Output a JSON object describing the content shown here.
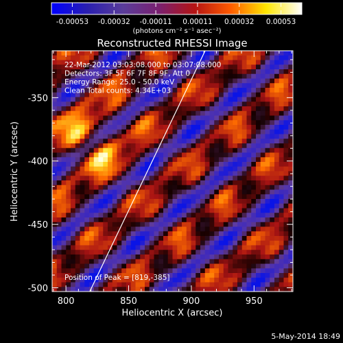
{
  "chart_data": {
    "type": "heatmap",
    "title": "Reconstructed RHESSI Image",
    "xlabel": "Heliocentric X (arcsec)",
    "ylabel": "Heliocentric Y (arcsec)",
    "xlim": [
      789,
      981
    ],
    "ylim": [
      -503,
      -313
    ],
    "x_ticks": [
      800,
      850,
      900,
      950
    ],
    "y_ticks": [
      -350,
      -400,
      -450,
      -500
    ],
    "grid": false,
    "colorbar": {
      "ticks": [
        "-0.00053",
        "-0.00032",
        "-0.00011",
        "0.00011",
        "0.00032",
        "0.00053"
      ],
      "unit_label": "(photons cm⁻² s⁻¹ asec⁻²)",
      "range": [
        -0.00053,
        0.00053
      ],
      "colors": [
        "#0000ff",
        "#2a1fb0",
        "#5a3d9a",
        "#7a2070",
        "#b41414",
        "#ff5a00",
        "#ffe600",
        "#ffffff"
      ]
    },
    "info_lines": [
      "22-Mar-2012 03:03:08.000 to 03:07:08.000",
      "Detectors: 3F 5F 6F 7F 8F 9F, Att 0",
      "Energy Range: 25.0 - 50.0 keV",
      "Clean     Total counts: 4.34E+03"
    ],
    "peak_label": "Position of Peak = [819,-385]",
    "limb_line": {
      "x": [
        819,
        911
      ],
      "y": [
        -503,
        -313
      ]
    }
  },
  "footer": {
    "date": "5-May-2014 18:49"
  }
}
